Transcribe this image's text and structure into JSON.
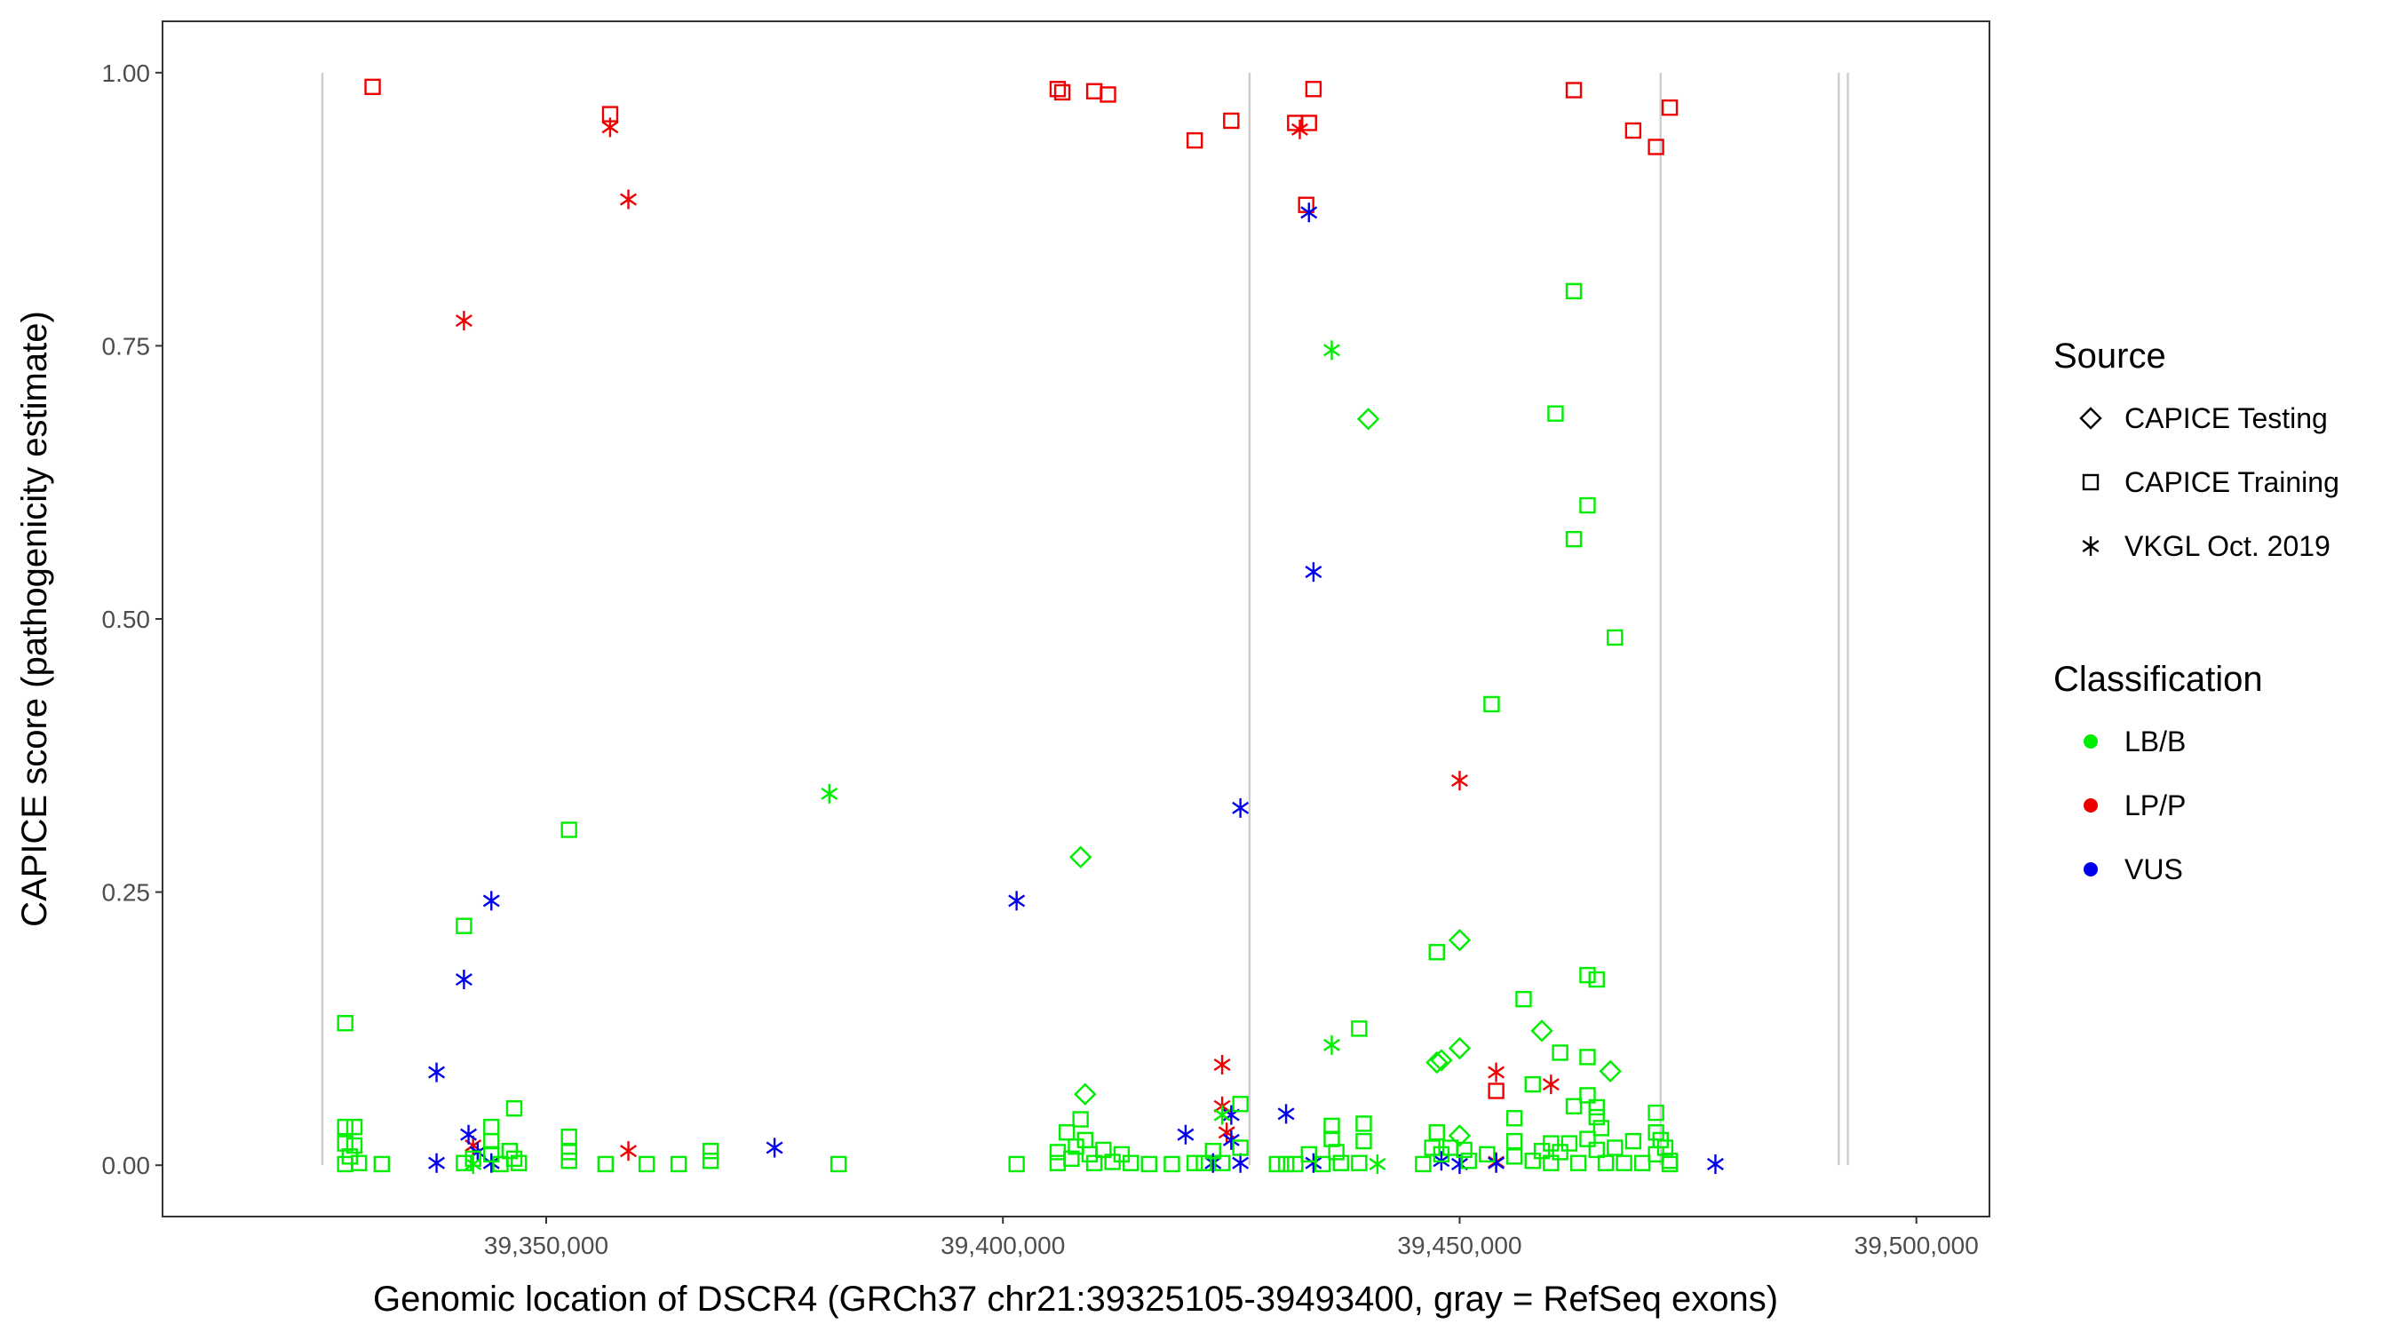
{
  "chart_data": {
    "type": "scatter",
    "xlabel": "Genomic location of DSCR4 (GRCh37 chr21:39325105-39493400, gray = RefSeq exons)",
    "ylabel": "CAPICE score (pathogenicity estimate)",
    "xlim": [
      39308000,
      39508000
    ],
    "ylim": [
      -0.047,
      1.047
    ],
    "x_ticks": [
      39350000,
      39400000,
      39450000,
      39500000
    ],
    "x_tick_labels": [
      "39,350,000",
      "39,400,000",
      "39,450,000",
      "39,500,000"
    ],
    "y_ticks": [
      0,
      0.25,
      0.5,
      0.75,
      1
    ],
    "y_tick_labels": [
      "0.00",
      "0.25",
      "0.50",
      "0.75",
      "1.00"
    ],
    "grid": false,
    "exon_lines": [
      39325500,
      39427000,
      39472000,
      39491500,
      39492500
    ],
    "exon_line_color": "#cccccc",
    "legend_position": "right",
    "legend": {
      "source_title": "Source",
      "source_items": [
        {
          "label": "CAPICE Testing",
          "shape": "diamond"
        },
        {
          "label": "CAPICE Training",
          "shape": "square"
        },
        {
          "label": "VKGL Oct. 2019",
          "shape": "asterisk"
        }
      ],
      "class_title": "Classification",
      "class_items": [
        {
          "label": "LB/B",
          "color": "#00ee00"
        },
        {
          "label": "LP/P",
          "color": "#ee0000"
        },
        {
          "label": "VUS",
          "color": "#0000ee"
        }
      ]
    },
    "colors": {
      "LB/B": "#00ee00",
      "LP/P": "#ee0000",
      "VUS": "#0000ee"
    },
    "series": [
      {
        "source": "CAPICE Training",
        "classification": "LP/P",
        "points": [
          [
            39331000,
            0.987
          ],
          [
            39357000,
            0.962
          ],
          [
            39406000,
            0.985
          ],
          [
            39406500,
            0.982
          ],
          [
            39410000,
            0.983
          ],
          [
            39411500,
            0.98
          ],
          [
            39421000,
            0.938
          ],
          [
            39425000,
            0.956
          ],
          [
            39432000,
            0.954
          ],
          [
            39433500,
            0.954
          ],
          [
            39434000,
            0.985
          ],
          [
            39433200,
            0.879
          ],
          [
            39454000,
            0.068
          ],
          [
            39462500,
            0.984
          ],
          [
            39469000,
            0.947
          ],
          [
            39471500,
            0.932
          ],
          [
            39473000,
            0.968
          ]
        ]
      },
      {
        "source": "VKGL Oct. 2019",
        "classification": "LP/P",
        "points": [
          [
            39357000,
            0.95
          ],
          [
            39359000,
            0.884
          ],
          [
            39341000,
            0.773
          ],
          [
            39342000,
            0.018
          ],
          [
            39359000,
            0.013
          ],
          [
            39424000,
            0.092
          ],
          [
            39424000,
            0.054
          ],
          [
            39424500,
            0.03
          ],
          [
            39432500,
            0.948
          ],
          [
            39450000,
            0.352
          ],
          [
            39454000,
            0.085
          ],
          [
            39460000,
            0.074
          ],
          [
            39454000,
            0.003
          ]
        ]
      },
      {
        "source": "VKGL Oct. 2019",
        "classification": "VUS",
        "points": [
          [
            39433500,
            0.872
          ],
          [
            39434000,
            0.543
          ],
          [
            39426000,
            0.327
          ],
          [
            39401500,
            0.242
          ],
          [
            39344000,
            0.242
          ],
          [
            39341000,
            0.17
          ],
          [
            39338000,
            0.085
          ],
          [
            39341500,
            0.028
          ],
          [
            39342500,
            0.012
          ],
          [
            39338000,
            0.002
          ],
          [
            39344000,
            0.002
          ],
          [
            39375000,
            0.016
          ],
          [
            39420000,
            0.028
          ],
          [
            39425000,
            0.046
          ],
          [
            39425000,
            0.023
          ],
          [
            39423000,
            0.002
          ],
          [
            39426000,
            0.002
          ],
          [
            39431000,
            0.047
          ],
          [
            39434000,
            0.002
          ],
          [
            39448000,
            0.004
          ],
          [
            39450000,
            0.001
          ],
          [
            39454000,
            0.002
          ],
          [
            39478000,
            0.001
          ]
        ]
      },
      {
        "source": "VKGL Oct. 2019",
        "classification": "LB/B",
        "points": [
          [
            39381000,
            0.34
          ],
          [
            39436000,
            0.746
          ],
          [
            39436000,
            0.11
          ],
          [
            39342000,
            0.001
          ],
          [
            39424000,
            0.046
          ],
          [
            39441000,
            0.001
          ]
        ]
      },
      {
        "source": "CAPICE Testing",
        "classification": "LB/B",
        "points": [
          [
            39440000,
            0.683
          ],
          [
            39408500,
            0.282
          ],
          [
            39450000,
            0.206
          ],
          [
            39448000,
            0.096
          ],
          [
            39447500,
            0.094
          ],
          [
            39450000,
            0.107
          ],
          [
            39459000,
            0.123
          ],
          [
            39466500,
            0.086
          ],
          [
            39409000,
            0.065
          ],
          [
            39450000,
            0.027
          ]
        ]
      },
      {
        "source": "CAPICE Training",
        "classification": "LB/B",
        "points": [
          [
            39462500,
            0.8
          ],
          [
            39460500,
            0.688
          ],
          [
            39464000,
            0.604
          ],
          [
            39462500,
            0.573
          ],
          [
            39467000,
            0.483
          ],
          [
            39453500,
            0.422
          ],
          [
            39352500,
            0.307
          ],
          [
            39341000,
            0.219
          ],
          [
            39447500,
            0.195
          ],
          [
            39464000,
            0.174
          ],
          [
            39465000,
            0.17
          ],
          [
            39457000,
            0.152
          ],
          [
            39328000,
            0.13
          ],
          [
            39439000,
            0.125
          ],
          [
            39461000,
            0.103
          ],
          [
            39464000,
            0.099
          ],
          [
            39458000,
            0.074
          ],
          [
            39462500,
            0.054
          ],
          [
            39465000,
            0.053
          ],
          [
            39465000,
            0.044
          ],
          [
            39465500,
            0.034
          ],
          [
            39464000,
            0.064
          ],
          [
            39456000,
            0.043
          ],
          [
            39471500,
            0.048
          ],
          [
            39346500,
            0.052
          ],
          [
            39408500,
            0.042
          ],
          [
            39407000,
            0.03
          ],
          [
            39436000,
            0.036
          ],
          [
            39439500,
            0.038
          ],
          [
            39447500,
            0.03
          ],
          [
            39344000,
            0.035
          ],
          [
            39344000,
            0.022
          ],
          [
            39352500,
            0.026
          ],
          [
            39328000,
            0.035
          ],
          [
            39329000,
            0.035
          ],
          [
            39328000,
            0.02
          ],
          [
            39329000,
            0.018
          ],
          [
            39328500,
            0.008
          ],
          [
            39329500,
            0.002
          ],
          [
            39328000,
            0.001
          ],
          [
            39332000,
            0.001
          ],
          [
            39341000,
            0.002
          ],
          [
            39342000,
            0.006
          ],
          [
            39344000,
            0.01
          ],
          [
            39346000,
            0.013
          ],
          [
            39346500,
            0.006
          ],
          [
            39347000,
            0.002
          ],
          [
            39345000,
            0.001
          ],
          [
            39352500,
            0.012
          ],
          [
            39352500,
            0.004
          ],
          [
            39356500,
            0.001
          ],
          [
            39361000,
            0.001
          ],
          [
            39364500,
            0.001
          ],
          [
            39368000,
            0.013
          ],
          [
            39368000,
            0.004
          ],
          [
            39382000,
            0.001
          ],
          [
            39401500,
            0.001
          ],
          [
            39406000,
            0.012
          ],
          [
            39406000,
            0.002
          ],
          [
            39407500,
            0.006
          ],
          [
            39408000,
            0.017
          ],
          [
            39409000,
            0.023
          ],
          [
            39409500,
            0.01
          ],
          [
            39410000,
            0.002
          ],
          [
            39411000,
            0.014
          ],
          [
            39412000,
            0.003
          ],
          [
            39413000,
            0.01
          ],
          [
            39414000,
            0.002
          ],
          [
            39416000,
            0.001
          ],
          [
            39418500,
            0.001
          ],
          [
            39421000,
            0.002
          ],
          [
            39422000,
            0.002
          ],
          [
            39423000,
            0.013
          ],
          [
            39424000,
            0.002
          ],
          [
            39426000,
            0.056
          ],
          [
            39426000,
            0.016
          ],
          [
            39430000,
            0.001
          ],
          [
            39431000,
            0.001
          ],
          [
            39432000,
            0.001
          ],
          [
            39433500,
            0.01
          ],
          [
            39435000,
            0.001
          ],
          [
            39436000,
            0.024
          ],
          [
            39436500,
            0.012
          ],
          [
            39437000,
            0.002
          ],
          [
            39439500,
            0.022
          ],
          [
            39439000,
            0.002
          ],
          [
            39446000,
            0.001
          ],
          [
            39447000,
            0.016
          ],
          [
            39448000,
            0.01
          ],
          [
            39449000,
            0.016
          ],
          [
            39450500,
            0.014
          ],
          [
            39451000,
            0.004
          ],
          [
            39453000,
            0.01
          ],
          [
            39456000,
            0.022
          ],
          [
            39456000,
            0.008
          ],
          [
            39458000,
            0.004
          ],
          [
            39459000,
            0.013
          ],
          [
            39460000,
            0.002
          ],
          [
            39460000,
            0.02
          ],
          [
            39461000,
            0.012
          ],
          [
            39462000,
            0.02
          ],
          [
            39463000,
            0.002
          ],
          [
            39464000,
            0.024
          ],
          [
            39465000,
            0.014
          ],
          [
            39466000,
            0.002
          ],
          [
            39467000,
            0.016
          ],
          [
            39468000,
            0.002
          ],
          [
            39469000,
            0.022
          ],
          [
            39470000,
            0.002
          ],
          [
            39471500,
            0.03
          ],
          [
            39471500,
            0.01
          ],
          [
            39472000,
            0.023
          ],
          [
            39472500,
            0.016
          ],
          [
            39473000,
            0.004
          ],
          [
            39473000,
            0.001
          ]
        ]
      }
    ]
  }
}
